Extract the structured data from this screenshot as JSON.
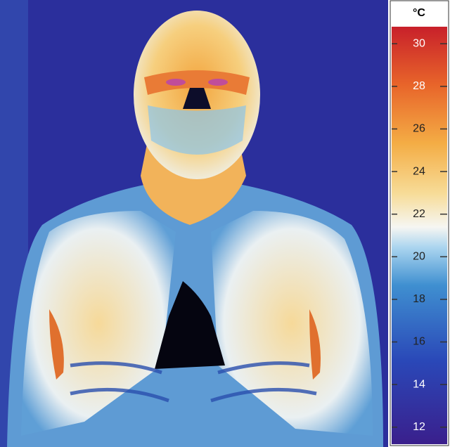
{
  "colorbar": {
    "unit": "°C",
    "range": [
      11.2,
      30.8
    ],
    "ticks": [
      12,
      14,
      16,
      18,
      20,
      22,
      24,
      26,
      28,
      30
    ]
  }
}
